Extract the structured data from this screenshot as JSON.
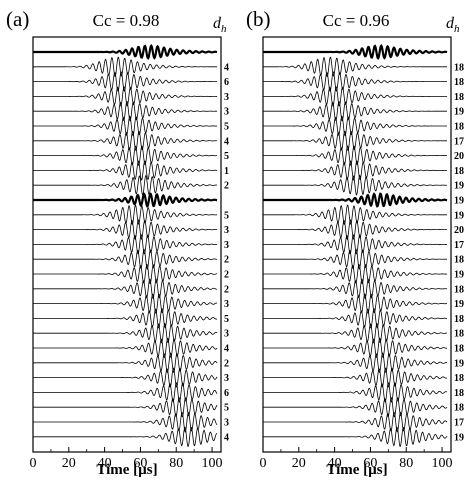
{
  "figure": {
    "background": "#ffffff",
    "ink": "#000000"
  },
  "chart_data": [
    {
      "type": "line",
      "panel_label": "(a)",
      "cc_label": "Cc = 0.98",
      "trace_label_header": "d",
      "trace_label_header_sub": "h",
      "xlabel": "Time [µs]",
      "xlim": [
        0,
        105
      ],
      "xticks": [
        0,
        20,
        40,
        60,
        80,
        100
      ],
      "grid": false,
      "reference_trace_indices": [
        0,
        10
      ],
      "trace_labels": [
        "",
        "4",
        "6",
        "3",
        "3",
        "5",
        "4",
        "5",
        "1",
        "2",
        "",
        "5",
        "3",
        "3",
        "2",
        "2",
        "2",
        "3",
        "5",
        "3",
        "4",
        "2",
        "3",
        "6",
        "5",
        "3",
        "4"
      ],
      "arrival_us": [
        58,
        40,
        42,
        44,
        46,
        48,
        50,
        52,
        54,
        55,
        58,
        50,
        52,
        54,
        56,
        58,
        60,
        62,
        64,
        66,
        68,
        70,
        72,
        74,
        76,
        78,
        80
      ]
    },
    {
      "type": "line",
      "panel_label": "(b)",
      "cc_label": "Cc = 0.96",
      "trace_label_header": "d",
      "trace_label_header_sub": "h",
      "xlabel": "Time [µs]",
      "xlim": [
        0,
        105
      ],
      "xticks": [
        0,
        20,
        40,
        60,
        80,
        100
      ],
      "grid": false,
      "reference_trace_indices": [
        0,
        10
      ],
      "trace_labels": [
        "",
        "18",
        "18",
        "18",
        "19",
        "18",
        "17",
        "20",
        "18",
        "19",
        "19",
        "19",
        "20",
        "17",
        "18",
        "19",
        "18",
        "19",
        "18",
        "18",
        "18",
        "19",
        "18",
        "18",
        "18",
        "17",
        "19"
      ],
      "arrival_us": [
        58,
        30,
        32,
        34,
        36,
        38,
        40,
        42,
        44,
        46,
        58,
        40,
        42,
        44,
        46,
        48,
        50,
        52,
        54,
        56,
        58,
        60,
        62,
        64,
        66,
        68,
        70
      ]
    }
  ]
}
